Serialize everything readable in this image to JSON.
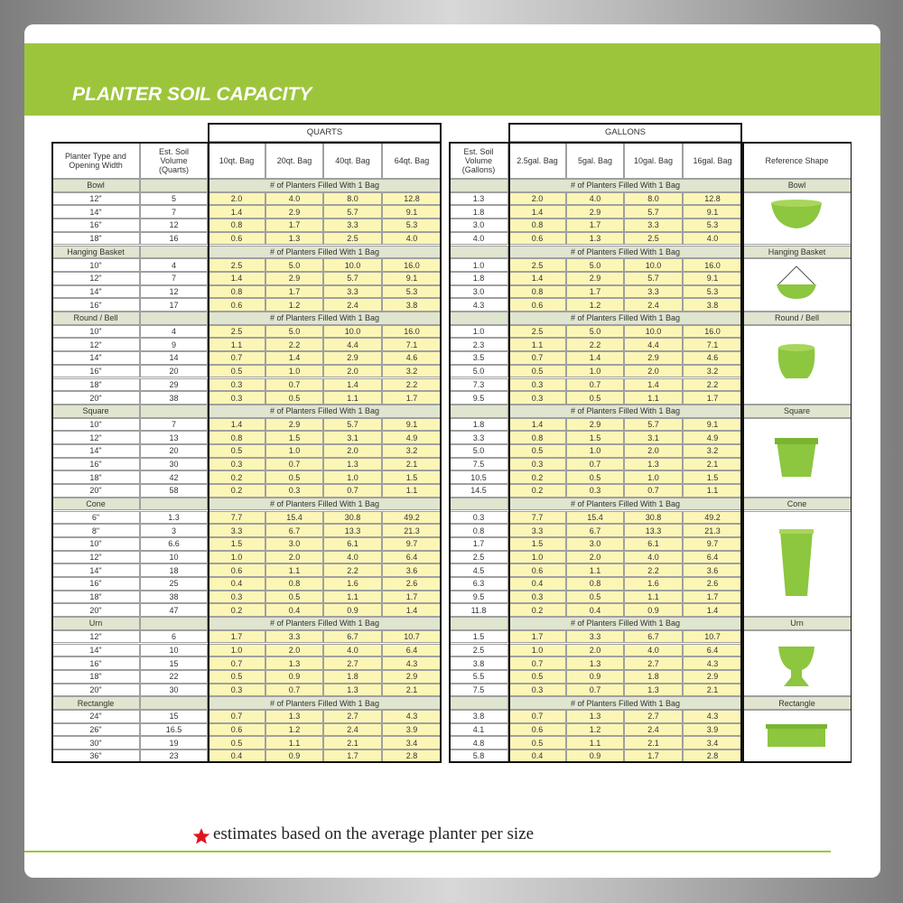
{
  "header": {
    "title": "PLANTER SOIL CAPACITY"
  },
  "table": {
    "group_headers": [
      "QUARTS",
      "GALLONS"
    ],
    "columns": [
      "Planter Type and Opening Width",
      "Est. Soil Volume (Quarts)",
      "10qt. Bag",
      "20qt. Bag",
      "40qt. Bag",
      "64qt. Bag",
      "Est. Soil Volume (Gallons)",
      "2.5gal. Bag",
      "5gal. Bag",
      "10gal. Bag",
      "16gal. Bag",
      "Reference Shape"
    ],
    "section_caption": "# of Planters Filled With 1 Bag",
    "sections": [
      {
        "name": "Bowl",
        "rows": [
          [
            "12\"",
            "5",
            "2.0",
            "4.0",
            "8.0",
            "12.8",
            "1.3",
            "2.0",
            "4.0",
            "8.0",
            "12.8"
          ],
          [
            "14\"",
            "7",
            "1.4",
            "2.9",
            "5.7",
            "9.1",
            "1.8",
            "1.4",
            "2.9",
            "5.7",
            "9.1"
          ],
          [
            "16\"",
            "12",
            "0.8",
            "1.7",
            "3.3",
            "5.3",
            "3.0",
            "0.8",
            "1.7",
            "3.3",
            "5.3"
          ],
          [
            "18\"",
            "16",
            "0.6",
            "1.3",
            "2.5",
            "4.0",
            "4.0",
            "0.6",
            "1.3",
            "2.5",
            "4.0"
          ]
        ]
      },
      {
        "name": "Hanging Basket",
        "rows": [
          [
            "10\"",
            "4",
            "2.5",
            "5.0",
            "10.0",
            "16.0",
            "1.0",
            "2.5",
            "5.0",
            "10.0",
            "16.0"
          ],
          [
            "12\"",
            "7",
            "1.4",
            "2.9",
            "5.7",
            "9.1",
            "1.8",
            "1.4",
            "2.9",
            "5.7",
            "9.1"
          ],
          [
            "14\"",
            "12",
            "0.8",
            "1.7",
            "3.3",
            "5.3",
            "3.0",
            "0.8",
            "1.7",
            "3.3",
            "5.3"
          ],
          [
            "16\"",
            "17",
            "0.6",
            "1.2",
            "2.4",
            "3.8",
            "4.3",
            "0.6",
            "1.2",
            "2.4",
            "3.8"
          ]
        ]
      },
      {
        "name": "Round / Bell",
        "rows": [
          [
            "10\"",
            "4",
            "2.5",
            "5.0",
            "10.0",
            "16.0",
            "1.0",
            "2.5",
            "5.0",
            "10.0",
            "16.0"
          ],
          [
            "12\"",
            "9",
            "1.1",
            "2.2",
            "4.4",
            "7.1",
            "2.3",
            "1.1",
            "2.2",
            "4.4",
            "7.1"
          ],
          [
            "14\"",
            "14",
            "0.7",
            "1.4",
            "2.9",
            "4.6",
            "3.5",
            "0.7",
            "1.4",
            "2.9",
            "4.6"
          ],
          [
            "16\"",
            "20",
            "0.5",
            "1.0",
            "2.0",
            "3.2",
            "5.0",
            "0.5",
            "1.0",
            "2.0",
            "3.2"
          ],
          [
            "18\"",
            "29",
            "0.3",
            "0.7",
            "1.4",
            "2.2",
            "7.3",
            "0.3",
            "0.7",
            "1.4",
            "2.2"
          ],
          [
            "20\"",
            "38",
            "0.3",
            "0.5",
            "1.1",
            "1.7",
            "9.5",
            "0.3",
            "0.5",
            "1.1",
            "1.7"
          ]
        ]
      },
      {
        "name": "Square",
        "rows": [
          [
            "10\"",
            "7",
            "1.4",
            "2.9",
            "5.7",
            "9.1",
            "1.8",
            "1.4",
            "2.9",
            "5.7",
            "9.1"
          ],
          [
            "12\"",
            "13",
            "0.8",
            "1.5",
            "3.1",
            "4.9",
            "3.3",
            "0.8",
            "1.5",
            "3.1",
            "4.9"
          ],
          [
            "14\"",
            "20",
            "0.5",
            "1.0",
            "2.0",
            "3.2",
            "5.0",
            "0.5",
            "1.0",
            "2.0",
            "3.2"
          ],
          [
            "16\"",
            "30",
            "0.3",
            "0.7",
            "1.3",
            "2.1",
            "7.5",
            "0.3",
            "0.7",
            "1.3",
            "2.1"
          ],
          [
            "18\"",
            "42",
            "0.2",
            "0.5",
            "1.0",
            "1.5",
            "10.5",
            "0.2",
            "0.5",
            "1.0",
            "1.5"
          ],
          [
            "20\"",
            "58",
            "0.2",
            "0.3",
            "0.7",
            "1.1",
            "14.5",
            "0.2",
            "0.3",
            "0.7",
            "1.1"
          ]
        ]
      },
      {
        "name": "Cone",
        "rows": [
          [
            "6\"",
            "1.3",
            "7.7",
            "15.4",
            "30.8",
            "49.2",
            "0.3",
            "7.7",
            "15.4",
            "30.8",
            "49.2"
          ],
          [
            "8\"",
            "3",
            "3.3",
            "6.7",
            "13.3",
            "21.3",
            "0.8",
            "3.3",
            "6.7",
            "13.3",
            "21.3"
          ],
          [
            "10\"",
            "6.6",
            "1.5",
            "3.0",
            "6.1",
            "9.7",
            "1.7",
            "1.5",
            "3.0",
            "6.1",
            "9.7"
          ],
          [
            "12\"",
            "10",
            "1.0",
            "2.0",
            "4.0",
            "6.4",
            "2.5",
            "1.0",
            "2.0",
            "4.0",
            "6.4"
          ],
          [
            "14\"",
            "18",
            "0.6",
            "1.1",
            "2.2",
            "3.6",
            "4.5",
            "0.6",
            "1.1",
            "2.2",
            "3.6"
          ],
          [
            "16\"",
            "25",
            "0.4",
            "0.8",
            "1.6",
            "2.6",
            "6.3",
            "0.4",
            "0.8",
            "1.6",
            "2.6"
          ],
          [
            "18\"",
            "38",
            "0.3",
            "0.5",
            "1.1",
            "1.7",
            "9.5",
            "0.3",
            "0.5",
            "1.1",
            "1.7"
          ],
          [
            "20\"",
            "47",
            "0.2",
            "0.4",
            "0.9",
            "1.4",
            "11.8",
            "0.2",
            "0.4",
            "0.9",
            "1.4"
          ]
        ]
      },
      {
        "name": "Urn",
        "rows": [
          [
            "12\"",
            "6",
            "1.7",
            "3.3",
            "6.7",
            "10.7",
            "1.5",
            "1.7",
            "3.3",
            "6.7",
            "10.7"
          ],
          [
            "14\"",
            "10",
            "1.0",
            "2.0",
            "4.0",
            "6.4",
            "2.5",
            "1.0",
            "2.0",
            "4.0",
            "6.4"
          ],
          [
            "16\"",
            "15",
            "0.7",
            "1.3",
            "2.7",
            "4.3",
            "3.8",
            "0.7",
            "1.3",
            "2.7",
            "4.3"
          ],
          [
            "18\"",
            "22",
            "0.5",
            "0.9",
            "1.8",
            "2.9",
            "5.5",
            "0.5",
            "0.9",
            "1.8",
            "2.9"
          ],
          [
            "20\"",
            "30",
            "0.3",
            "0.7",
            "1.3",
            "2.1",
            "7.5",
            "0.3",
            "0.7",
            "1.3",
            "2.1"
          ]
        ]
      },
      {
        "name": "Rectangle",
        "rows": [
          [
            "24\"",
            "15",
            "0.7",
            "1.3",
            "2.7",
            "4.3",
            "3.8",
            "0.7",
            "1.3",
            "2.7",
            "4.3"
          ],
          [
            "26\"",
            "16.5",
            "0.6",
            "1.2",
            "2.4",
            "3.9",
            "4.1",
            "0.6",
            "1.2",
            "2.4",
            "3.9"
          ],
          [
            "30\"",
            "19",
            "0.5",
            "1.1",
            "2.1",
            "3.4",
            "4.8",
            "0.5",
            "1.1",
            "2.1",
            "3.4"
          ],
          [
            "36\"",
            "23",
            "0.4",
            "0.9",
            "1.7",
            "2.8",
            "5.8",
            "0.4",
            "0.9",
            "1.7",
            "2.8"
          ]
        ]
      }
    ]
  },
  "footer": {
    "note": "estimates based on the average planter per size"
  }
}
